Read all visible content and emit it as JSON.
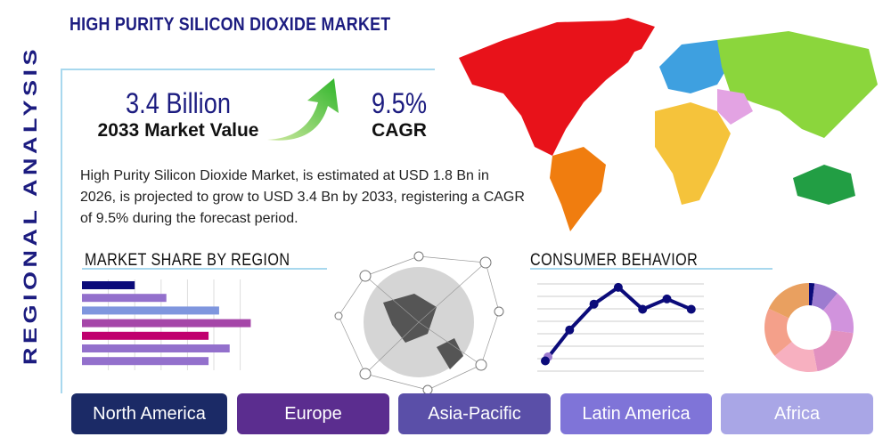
{
  "title": "HIGH PURITY SILICON DIOXIDE MARKET",
  "side_label": "REGIONAL ANALYSIS",
  "market_value": {
    "value": "3.4 Billion",
    "label": "2033 Market Value"
  },
  "cagr": {
    "value": "9.5%",
    "label": "CAGR"
  },
  "description": "High Purity Silicon Dioxide Market, is estimated at USD 1.8 Bn in 2026, is projected to grow to USD 3.4 Bn by 2033, registering a CAGR of 9.5% during the forecast period.",
  "sections": {
    "market_share": "MARKET SHARE BY REGION",
    "consumer": "CONSUMER BEHAVIOR"
  },
  "regions": [
    {
      "label": "North America",
      "color": "#1b2a66"
    },
    {
      "label": "Europe",
      "color": "#5b2d8f"
    },
    {
      "label": "Asia-Pacific",
      "color": "#5a4fa8"
    },
    {
      "label": "Latin America",
      "color": "#7f74d8"
    },
    {
      "label": "Africa",
      "color": "#a9a6e6"
    }
  ],
  "chart_data": [
    {
      "type": "bar",
      "orientation": "horizontal",
      "values": [
        2,
        3.2,
        5.2,
        6.4,
        4.8,
        5.6,
        4.8
      ],
      "colors": [
        "#0b0b7a",
        "#9370cc",
        "#7f96de",
        "#a546a8",
        "#c0006e",
        "#9370cc",
        "#9370cc"
      ],
      "grid": true
    },
    {
      "type": "line",
      "values": [
        1,
        3.4,
        5.4,
        6.7,
        5,
        5.8,
        5
      ],
      "color": "#0b0b7a",
      "grid": true
    },
    {
      "type": "pie",
      "donut": true,
      "values": [
        2,
        9,
        16,
        20,
        17,
        18,
        18
      ],
      "colors": [
        "#0b0b7a",
        "#9c7bd0",
        "#d193dd",
        "#e291c0",
        "#f7b0c0",
        "#f4a08a",
        "#e9a060"
      ]
    }
  ]
}
